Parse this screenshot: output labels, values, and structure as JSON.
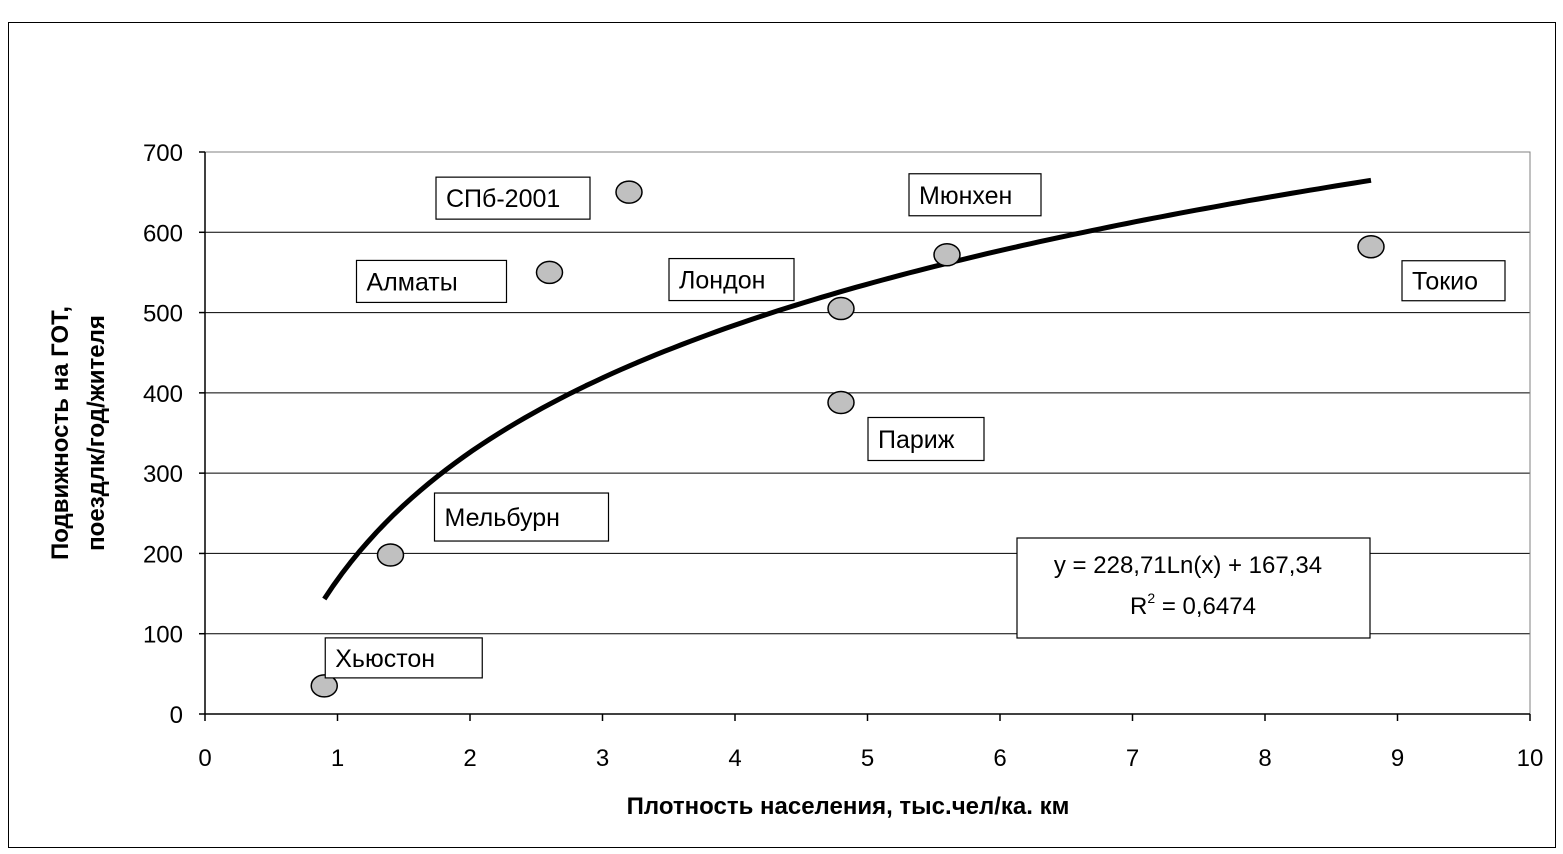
{
  "chart_data": {
    "type": "scatter",
    "xlabel": "Плотность населения, тыс.чел/ка. км",
    "ylabel_lines": [
      "Подвижность на ГОТ,",
      "поездлк/год/жителя"
    ],
    "xlim": [
      0,
      10
    ],
    "ylim": [
      0,
      700
    ],
    "x_ticks": [
      0,
      1,
      2,
      3,
      4,
      5,
      6,
      7,
      8,
      9,
      10
    ],
    "y_ticks": [
      0,
      100,
      200,
      300,
      400,
      500,
      600,
      700
    ],
    "grid": "horizontal",
    "points": [
      {
        "label": "Хьюстон",
        "x": 0.9,
        "y": 35
      },
      {
        "label": "Мельбурн",
        "x": 1.4,
        "y": 198
      },
      {
        "label": "Алматы",
        "x": 2.6,
        "y": 550
      },
      {
        "label": "СПб-2001",
        "x": 3.2,
        "y": 650
      },
      {
        "label": "Лондон",
        "x": 4.8,
        "y": 505
      },
      {
        "label": "Париж",
        "x": 4.8,
        "y": 388
      },
      {
        "label": "Мюнхен",
        "x": 5.6,
        "y": 572
      },
      {
        "label": "Токио",
        "x": 8.8,
        "y": 582
      }
    ],
    "trendline": {
      "type": "logarithmic",
      "a": 228.71,
      "b": 167.34,
      "x_range": [
        0.9,
        8.8
      ],
      "equation": "y = 228,71Ln(x) + 167,34",
      "r2_label": "R",
      "r2_exponent": "2",
      "r2_value": " = 0,6474"
    },
    "colors": {
      "marker_fill": "#c0c0c0",
      "marker_stroke": "#000000",
      "trendline": "#000000",
      "grid": "#000000"
    }
  }
}
